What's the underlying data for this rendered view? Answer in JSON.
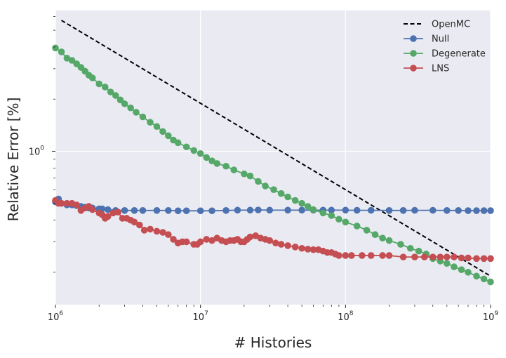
{
  "chart_data": {
    "type": "line",
    "xlabel": "# Histories",
    "ylabel": "Relative Error [%]",
    "xscale": "log",
    "yscale": "log",
    "xlim": [
      1000000,
      1000000000
    ],
    "ylim": [
      0.13,
      6.5
    ],
    "grid": true,
    "legend_position": "top-right",
    "x_ticks": [
      {
        "value": 1000000,
        "base": "10",
        "exp": "6"
      },
      {
        "value": 10000000,
        "base": "10",
        "exp": "7"
      },
      {
        "value": 100000000,
        "base": "10",
        "exp": "8"
      },
      {
        "value": 1000000000,
        "base": "10",
        "exp": "9"
      }
    ],
    "y_ticks": [
      {
        "value": 1,
        "base": "10",
        "exp": "0"
      }
    ],
    "series": [
      {
        "name": "OpenMC",
        "color": "#000000",
        "style": "dashed",
        "marker": "none",
        "points": [
          [
            1100000,
            5.7
          ],
          [
            1000000000,
            0.19
          ]
        ]
      },
      {
        "name": "Null",
        "color": "#4c72b0",
        "style": "solid",
        "marker": "circle",
        "points": [
          [
            1000000,
            0.51
          ],
          [
            1050000,
            0.53
          ],
          [
            1100000,
            0.5
          ],
          [
            1200000,
            0.49
          ],
          [
            1300000,
            0.49
          ],
          [
            1400000,
            0.485
          ],
          [
            1500000,
            0.48
          ],
          [
            1600000,
            0.475
          ],
          [
            1700000,
            0.47
          ],
          [
            1800000,
            0.47
          ],
          [
            2000000,
            0.465
          ],
          [
            2100000,
            0.465
          ],
          [
            2300000,
            0.46
          ],
          [
            2600000,
            0.455
          ],
          [
            3000000,
            0.455
          ],
          [
            3500000,
            0.455
          ],
          [
            4000000,
            0.455
          ],
          [
            5000000,
            0.455
          ],
          [
            6000000,
            0.455
          ],
          [
            7000000,
            0.453
          ],
          [
            8000000,
            0.453
          ],
          [
            10000000,
            0.453
          ],
          [
            12000000,
            0.453
          ],
          [
            15000000,
            0.455
          ],
          [
            18000000,
            0.457
          ],
          [
            22000000,
            0.457
          ],
          [
            25000000,
            0.458
          ],
          [
            30000000,
            0.457
          ],
          [
            40000000,
            0.457
          ],
          [
            50000000,
            0.457
          ],
          [
            60000000,
            0.457
          ],
          [
            70000000,
            0.457
          ],
          [
            80000000,
            0.457
          ],
          [
            100000000,
            0.457
          ],
          [
            120000000,
            0.456
          ],
          [
            150000000,
            0.456
          ],
          [
            200000000,
            0.455
          ],
          [
            250000000,
            0.455
          ],
          [
            300000000,
            0.456
          ],
          [
            400000000,
            0.456
          ],
          [
            500000000,
            0.455
          ],
          [
            600000000,
            0.455
          ],
          [
            700000000,
            0.454
          ],
          [
            800000000,
            0.454
          ],
          [
            900000000,
            0.454
          ],
          [
            1000000000,
            0.454
          ]
        ]
      },
      {
        "name": "Degenerate",
        "color": "#55a868",
        "style": "solid",
        "marker": "circle",
        "points": [
          [
            1000000,
            3.95
          ],
          [
            1100000,
            3.75
          ],
          [
            1200000,
            3.45
          ],
          [
            1300000,
            3.35
          ],
          [
            1400000,
            3.2
          ],
          [
            1500000,
            3.05
          ],
          [
            1600000,
            2.9
          ],
          [
            1700000,
            2.75
          ],
          [
            1800000,
            2.65
          ],
          [
            2000000,
            2.45
          ],
          [
            2200000,
            2.35
          ],
          [
            2400000,
            2.2
          ],
          [
            2600000,
            2.1
          ],
          [
            2800000,
            1.98
          ],
          [
            3000000,
            1.88
          ],
          [
            3300000,
            1.78
          ],
          [
            3600000,
            1.68
          ],
          [
            4000000,
            1.58
          ],
          [
            4500000,
            1.47
          ],
          [
            5000000,
            1.39
          ],
          [
            5500000,
            1.3
          ],
          [
            6000000,
            1.23
          ],
          [
            6500000,
            1.16
          ],
          [
            7000000,
            1.12
          ],
          [
            8000000,
            1.06
          ],
          [
            9000000,
            1.01
          ],
          [
            10000000,
            0.97
          ],
          [
            11000000,
            0.92
          ],
          [
            12000000,
            0.88
          ],
          [
            13000000,
            0.85
          ],
          [
            15000000,
            0.82
          ],
          [
            17000000,
            0.78
          ],
          [
            20000000,
            0.74
          ],
          [
            22000000,
            0.72
          ],
          [
            25000000,
            0.67
          ],
          [
            28000000,
            0.63
          ],
          [
            32000000,
            0.6
          ],
          [
            36000000,
            0.57
          ],
          [
            40000000,
            0.545
          ],
          [
            45000000,
            0.52
          ],
          [
            50000000,
            0.5
          ],
          [
            55000000,
            0.48
          ],
          [
            60000000,
            0.46
          ],
          [
            70000000,
            0.44
          ],
          [
            80000000,
            0.425
          ],
          [
            90000000,
            0.405
          ],
          [
            100000000,
            0.39
          ],
          [
            120000000,
            0.37
          ],
          [
            140000000,
            0.35
          ],
          [
            160000000,
            0.33
          ],
          [
            180000000,
            0.315
          ],
          [
            200000000,
            0.305
          ],
          [
            240000000,
            0.29
          ],
          [
            280000000,
            0.275
          ],
          [
            320000000,
            0.265
          ],
          [
            360000000,
            0.255
          ],
          [
            400000000,
            0.24
          ],
          [
            450000000,
            0.232
          ],
          [
            500000000,
            0.225
          ],
          [
            560000000,
            0.215
          ],
          [
            630000000,
            0.207
          ],
          [
            700000000,
            0.2
          ],
          [
            800000000,
            0.19
          ],
          [
            900000000,
            0.183
          ],
          [
            1000000000,
            0.176
          ]
        ]
      },
      {
        "name": "LNS",
        "color": "#c44e52",
        "style": "solid",
        "marker": "circle",
        "points": [
          [
            1000000,
            0.52
          ],
          [
            1050000,
            0.5
          ],
          [
            1100000,
            0.5
          ],
          [
            1200000,
            0.5
          ],
          [
            1300000,
            0.5
          ],
          [
            1400000,
            0.49
          ],
          [
            1500000,
            0.455
          ],
          [
            1600000,
            0.47
          ],
          [
            1700000,
            0.48
          ],
          [
            1800000,
            0.46
          ],
          [
            2000000,
            0.44
          ],
          [
            2100000,
            0.43
          ],
          [
            2200000,
            0.41
          ],
          [
            2300000,
            0.42
          ],
          [
            2500000,
            0.44
          ],
          [
            2700000,
            0.445
          ],
          [
            2900000,
            0.41
          ],
          [
            3100000,
            0.41
          ],
          [
            3300000,
            0.4
          ],
          [
            3500000,
            0.39
          ],
          [
            3800000,
            0.375
          ],
          [
            4100000,
            0.35
          ],
          [
            4500000,
            0.355
          ],
          [
            5000000,
            0.345
          ],
          [
            5500000,
            0.34
          ],
          [
            6000000,
            0.33
          ],
          [
            6500000,
            0.31
          ],
          [
            7000000,
            0.295
          ],
          [
            7500000,
            0.3
          ],
          [
            8000000,
            0.3
          ],
          [
            9000000,
            0.29
          ],
          [
            9500000,
            0.29
          ],
          [
            10000000,
            0.3
          ],
          [
            11000000,
            0.31
          ],
          [
            12000000,
            0.305
          ],
          [
            13000000,
            0.315
          ],
          [
            14000000,
            0.305
          ],
          [
            15000000,
            0.3
          ],
          [
            16000000,
            0.305
          ],
          [
            17000000,
            0.305
          ],
          [
            18000000,
            0.31
          ],
          [
            19000000,
            0.3
          ],
          [
            20000000,
            0.3
          ],
          [
            21000000,
            0.31
          ],
          [
            22000000,
            0.32
          ],
          [
            24000000,
            0.325
          ],
          [
            26000000,
            0.315
          ],
          [
            28000000,
            0.31
          ],
          [
            30000000,
            0.305
          ],
          [
            33000000,
            0.295
          ],
          [
            36000000,
            0.29
          ],
          [
            40000000,
            0.285
          ],
          [
            45000000,
            0.28
          ],
          [
            50000000,
            0.275
          ],
          [
            55000000,
            0.272
          ],
          [
            60000000,
            0.27
          ],
          [
            65000000,
            0.27
          ],
          [
            70000000,
            0.265
          ],
          [
            75000000,
            0.26
          ],
          [
            80000000,
            0.26
          ],
          [
            85000000,
            0.255
          ],
          [
            90000000,
            0.25
          ],
          [
            100000000,
            0.25
          ],
          [
            110000000,
            0.25
          ],
          [
            130000000,
            0.25
          ],
          [
            150000000,
            0.25
          ],
          [
            180000000,
            0.25
          ],
          [
            200000000,
            0.25
          ],
          [
            250000000,
            0.245
          ],
          [
            300000000,
            0.245
          ],
          [
            350000000,
            0.245
          ],
          [
            400000000,
            0.245
          ],
          [
            450000000,
            0.245
          ],
          [
            500000000,
            0.245
          ],
          [
            560000000,
            0.245
          ],
          [
            630000000,
            0.242
          ],
          [
            700000000,
            0.242
          ],
          [
            800000000,
            0.24
          ],
          [
            900000000,
            0.24
          ],
          [
            1000000000,
            0.24
          ]
        ]
      }
    ]
  }
}
